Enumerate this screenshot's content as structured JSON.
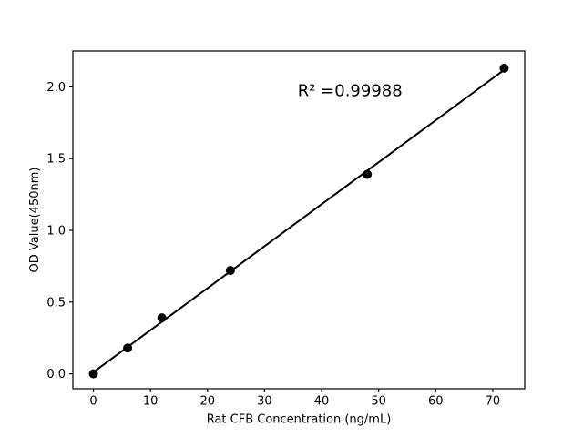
{
  "chart_data": {
    "type": "scatter",
    "title": "",
    "xlabel": "Rat CFB Concentration (ng/mL)",
    "ylabel": "OD Value(450nm)",
    "x": [
      0,
      6,
      12,
      24,
      48,
      72
    ],
    "y": [
      0.0,
      0.18,
      0.39,
      0.72,
      1.39,
      2.13
    ],
    "fit_line": true,
    "annotation": {
      "text": "R² =0.99988",
      "x": 35.8,
      "y": 1.935
    },
    "xticks": [
      0,
      10,
      20,
      30,
      40,
      50,
      60,
      70
    ],
    "yticks": [
      0.0,
      0.5,
      1.0,
      1.5,
      2.0
    ],
    "xlim": [
      -3.6,
      75.6
    ],
    "ylim": [
      -0.104,
      2.25
    ],
    "grid": false,
    "legend": null,
    "marker_color": "#000000",
    "line_color": "#000000",
    "axis_color": "#000000",
    "background": "#ffffff"
  }
}
